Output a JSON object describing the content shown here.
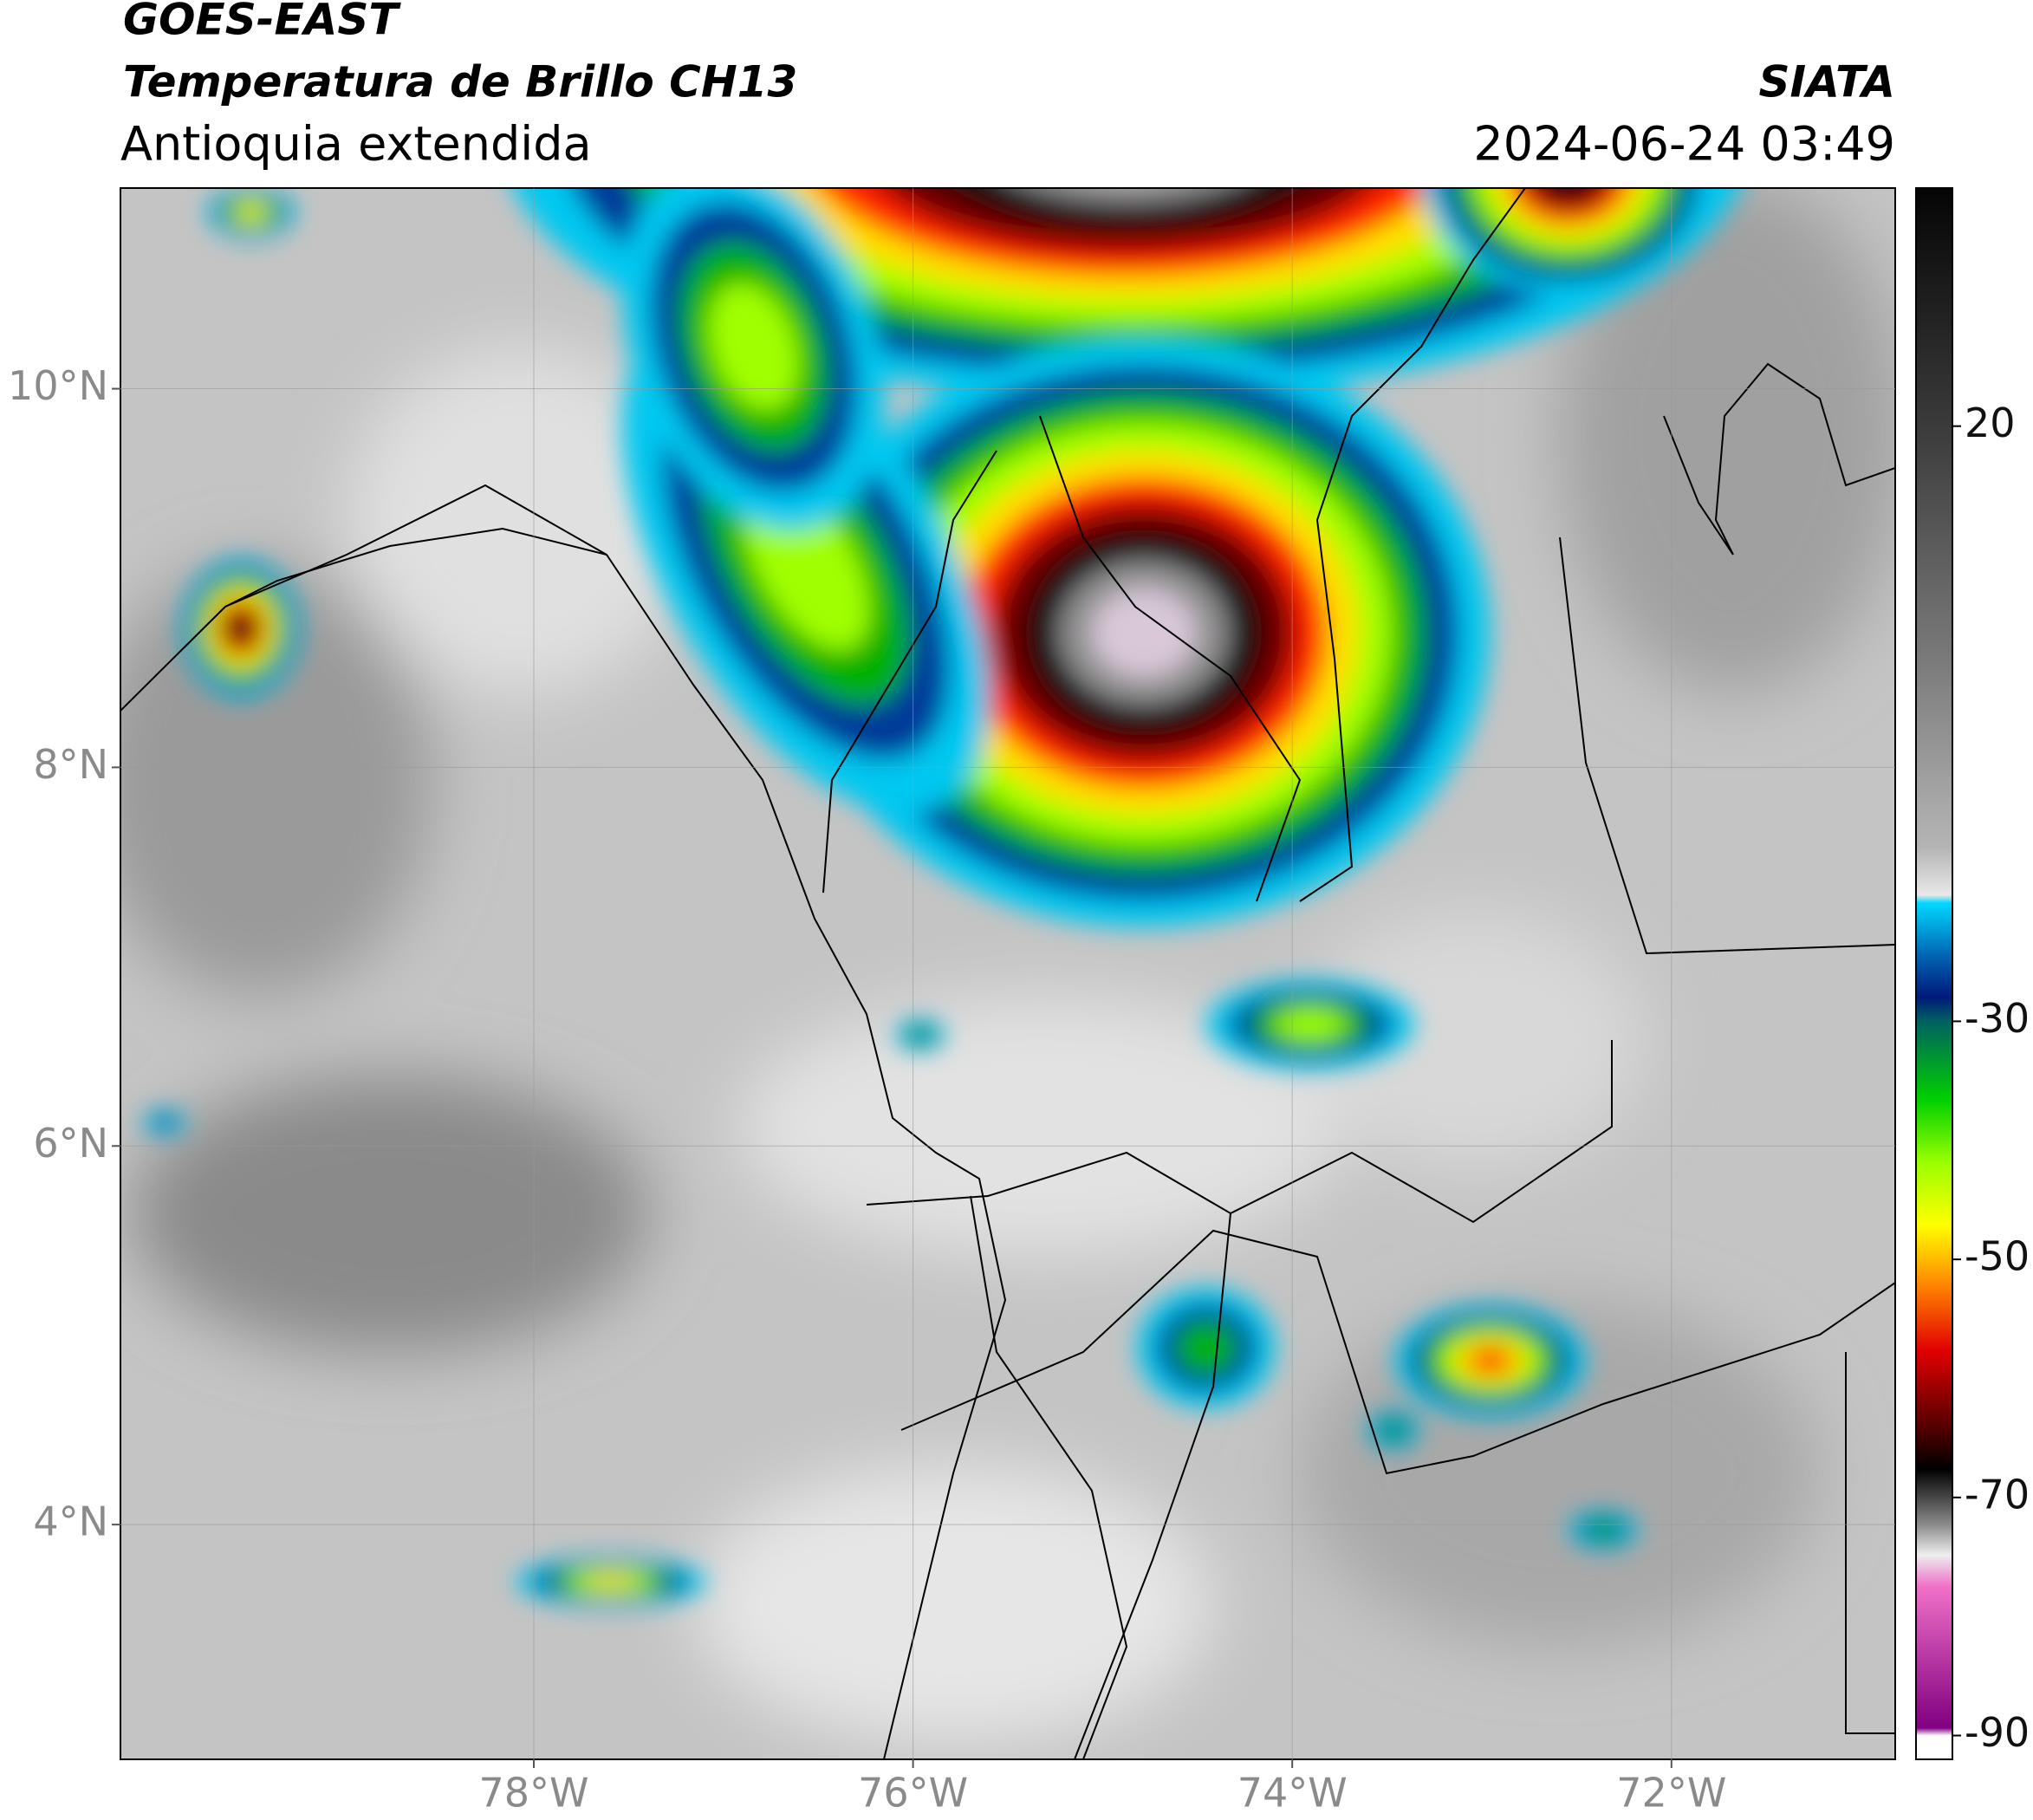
{
  "header": {
    "satellite": "GOES-EAST",
    "product": "Temperatura de Brillo CH13",
    "region": "Antioquia extendida",
    "source": "SIATA",
    "datetime": "2024-06-24 03:49"
  },
  "map": {
    "lonlim": [
      -80.18,
      -70.82
    ],
    "latlim": [
      2.76,
      11.06
    ],
    "lon_ticks": [
      {
        "value": -78,
        "label": "78°W"
      },
      {
        "value": -76,
        "label": "76°W"
      },
      {
        "value": -74,
        "label": "74°W"
      },
      {
        "value": -72,
        "label": "72°W"
      }
    ],
    "lat_ticks": [
      {
        "value": 10,
        "label": "10°N"
      },
      {
        "value": 8,
        "label": "8°N"
      },
      {
        "value": 6,
        "label": "6°N"
      },
      {
        "value": 4,
        "label": "4°N"
      }
    ],
    "grid": true
  },
  "colorbar": {
    "lim": [
      -92,
      40
    ],
    "ticks": [
      20,
      -30,
      -50,
      -70,
      -90
    ]
  }
}
